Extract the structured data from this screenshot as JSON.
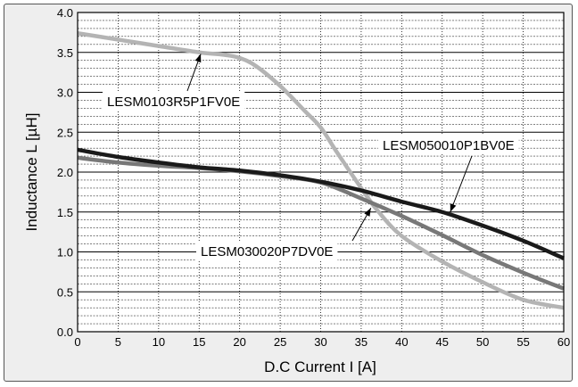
{
  "chart_data": {
    "type": "line",
    "title": "",
    "xlabel": "D.C Current  I [A]",
    "ylabel": "Inductance  L  [µH]",
    "xlim": [
      0,
      60
    ],
    "ylim": [
      0,
      4.0
    ],
    "xticks": [
      0,
      5,
      10,
      15,
      20,
      25,
      30,
      35,
      40,
      45,
      50,
      55,
      60
    ],
    "yticks": [
      "0.0",
      "0.5",
      "1.0",
      "1.5",
      "2.0",
      "2.5",
      "3.0",
      "3.5",
      "4.0"
    ],
    "grid": true,
    "series": [
      {
        "name": "LESM0103R5P1FV0E",
        "color": "#b4b4b4",
        "x": [
          0,
          5,
          10,
          15,
          18,
          20,
          22,
          25,
          28,
          30,
          32,
          35,
          37,
          40,
          45,
          50,
          55,
          60
        ],
        "y": [
          3.74,
          3.66,
          3.58,
          3.5,
          3.47,
          3.43,
          3.33,
          3.08,
          2.77,
          2.56,
          2.25,
          1.8,
          1.52,
          1.2,
          0.88,
          0.62,
          0.4,
          0.3
        ]
      },
      {
        "name": "LESM050010P1BV0E",
        "color": "#1a1a1a",
        "x": [
          0,
          5,
          10,
          15,
          20,
          25,
          30,
          35,
          40,
          45,
          50,
          55,
          60
        ],
        "y": [
          2.28,
          2.19,
          2.12,
          2.06,
          2.02,
          1.96,
          1.88,
          1.77,
          1.63,
          1.5,
          1.33,
          1.14,
          0.92
        ]
      },
      {
        "name": "LESM030020P7DV0E",
        "color": "#787878",
        "x": [
          0,
          5,
          10,
          15,
          20,
          25,
          30,
          35,
          40,
          45,
          50,
          55,
          60
        ],
        "y": [
          2.18,
          2.12,
          2.08,
          2.05,
          2.01,
          1.95,
          1.87,
          1.67,
          1.45,
          1.21,
          0.96,
          0.74,
          0.54
        ]
      }
    ],
    "annotations": [
      {
        "text": "LESM0103R5P1FV0E",
        "series": 0
      },
      {
        "text": "LESM050010P1BV0E",
        "series": 1
      },
      {
        "text": "LESM030020P7DV0E",
        "series": 2
      }
    ]
  }
}
